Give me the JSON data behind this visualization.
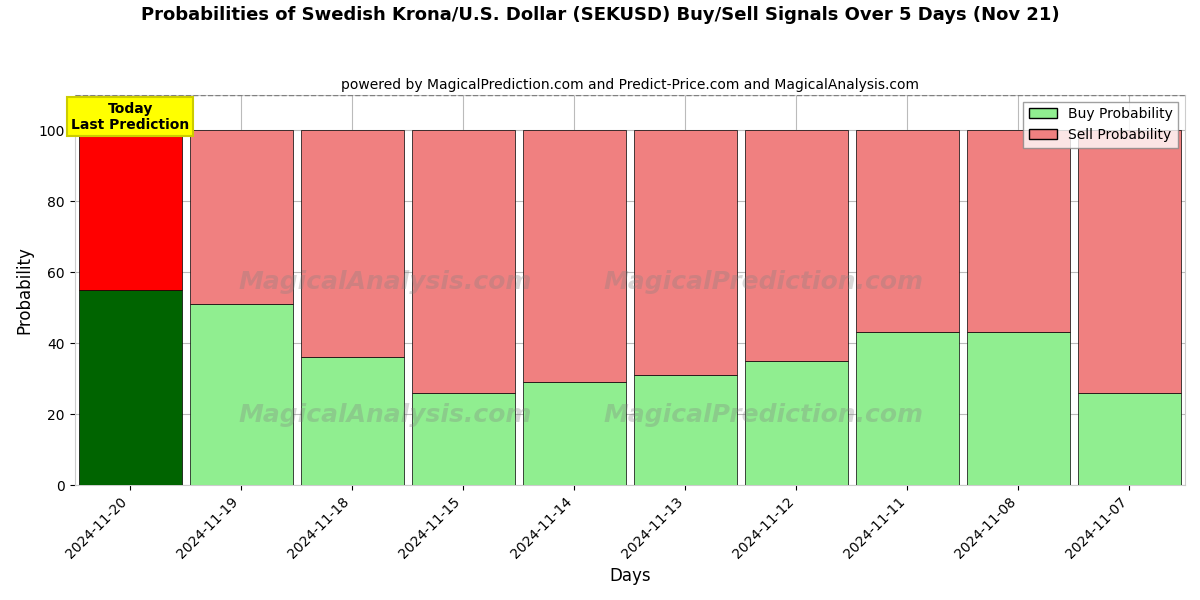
{
  "title": "Probabilities of Swedish Krona/U.S. Dollar (SEKUSD) Buy/Sell Signals Over 5 Days (Nov 21)",
  "subtitle": "powered by MagicalPrediction.com and Predict-Price.com and MagicalAnalysis.com",
  "xlabel": "Days",
  "ylabel": "Probability",
  "categories": [
    "2024-11-20",
    "2024-11-19",
    "2024-11-18",
    "2024-11-15",
    "2024-11-14",
    "2024-11-13",
    "2024-11-12",
    "2024-11-11",
    "2024-11-08",
    "2024-11-07"
  ],
  "buy_values": [
    55,
    51,
    36,
    26,
    29,
    31,
    35,
    43,
    43,
    26
  ],
  "sell_values": [
    45,
    49,
    64,
    74,
    71,
    69,
    65,
    57,
    57,
    74
  ],
  "today_bar_buy_color": "#006400",
  "today_bar_sell_color": "#FF0000",
  "other_bar_buy_color": "#90EE90",
  "other_bar_sell_color": "#F08080",
  "today_label_bg": "#FFFF00",
  "today_label_text": "Today\nLast Prediction",
  "legend_buy_label": "Buy Probability",
  "legend_sell_label": "Sell Probability",
  "ylim": [
    0,
    110
  ],
  "yticks": [
    0,
    20,
    40,
    60,
    80,
    100
  ],
  "dashed_line_y": 110,
  "bar_edge_color": "#000000",
  "bar_linewidth": 0.5,
  "background_color": "#ffffff",
  "grid_color": "#bbbbbb",
  "bar_width": 0.93
}
